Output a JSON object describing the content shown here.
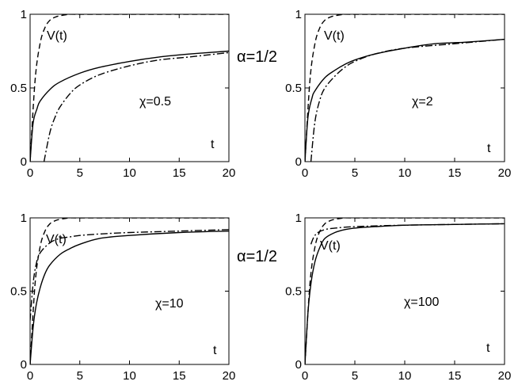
{
  "figure_labels": {
    "top": "α=1/2",
    "bottom": "α=1/2"
  },
  "chart_data": [
    {
      "type": "line",
      "xlim": [
        0,
        20
      ],
      "ylim": [
        0,
        1
      ],
      "xticks": [
        "0",
        "5",
        "10",
        "15",
        "20"
      ],
      "yticks": [
        "0",
        "0.5",
        "1"
      ],
      "xlabel": "t",
      "annotations": {
        "curve_label": "V(t)",
        "param": "χ=0.5"
      },
      "series": [
        {
          "name": "V(t)",
          "style": "dashed",
          "x": [
            0,
            0.5,
            1,
            1.5,
            2,
            2.5,
            3,
            4,
            5,
            20
          ],
          "y": [
            0,
            0.55,
            0.8,
            0.91,
            0.96,
            0.98,
            0.99,
            1.0,
            1.0,
            1.0
          ]
        },
        {
          "style": "solid",
          "x": [
            0,
            0.3,
            0.7,
            1,
            2,
            3,
            5,
            7,
            10,
            13,
            16,
            20
          ],
          "y": [
            0,
            0.26,
            0.36,
            0.41,
            0.49,
            0.54,
            0.6,
            0.64,
            0.68,
            0.71,
            0.73,
            0.75
          ]
        },
        {
          "style": "dashdot",
          "x": [
            1.4,
            2,
            2.5,
            3,
            4,
            5,
            7,
            10,
            13,
            16,
            20
          ],
          "y": [
            0,
            0.2,
            0.3,
            0.37,
            0.46,
            0.52,
            0.59,
            0.65,
            0.69,
            0.71,
            0.74
          ]
        }
      ]
    },
    {
      "type": "line",
      "xlim": [
        0,
        20
      ],
      "ylim": [
        0,
        1
      ],
      "xticks": [
        "0",
        "5",
        "10",
        "15",
        "20"
      ],
      "yticks": [
        "0",
        "0.5",
        "1"
      ],
      "xlabel": "t",
      "annotations": {
        "curve_label": "V(t)",
        "param": "χ=2"
      },
      "series": [
        {
          "name": "V(t)",
          "style": "dashed",
          "x": [
            0,
            0.5,
            1,
            1.5,
            2,
            2.5,
            3,
            4,
            5,
            20
          ],
          "y": [
            0,
            0.55,
            0.8,
            0.91,
            0.96,
            0.98,
            0.99,
            1.0,
            1.0,
            1.0
          ]
        },
        {
          "style": "solid",
          "x": [
            0,
            0.3,
            0.7,
            1,
            2,
            3,
            4,
            5,
            7,
            10,
            13,
            16,
            20
          ],
          "y": [
            0,
            0.3,
            0.43,
            0.48,
            0.57,
            0.62,
            0.66,
            0.69,
            0.73,
            0.77,
            0.8,
            0.81,
            0.83
          ]
        },
        {
          "style": "dashdot",
          "x": [
            0.6,
            1,
            1.5,
            2,
            3,
            4,
            5,
            7,
            10,
            15,
            20
          ],
          "y": [
            0,
            0.27,
            0.42,
            0.5,
            0.58,
            0.64,
            0.68,
            0.73,
            0.77,
            0.8,
            0.83
          ]
        }
      ]
    },
    {
      "type": "line",
      "xlim": [
        0,
        20
      ],
      "ylim": [
        0,
        1
      ],
      "xticks": [
        "0",
        "5",
        "10",
        "15",
        "20"
      ],
      "yticks": [
        "0",
        "0.5",
        "1"
      ],
      "xlabel": "t",
      "annotations": {
        "curve_label": "V(t)",
        "param": "χ=10"
      },
      "series": [
        {
          "name": "V(t)",
          "style": "dashed",
          "x": [
            0,
            0.5,
            1,
            1.5,
            2,
            2.5,
            3,
            4,
            5,
            20
          ],
          "y": [
            0,
            0.55,
            0.8,
            0.91,
            0.96,
            0.98,
            0.99,
            1.0,
            1.0,
            1.0
          ]
        },
        {
          "style": "solid",
          "x": [
            0,
            0.3,
            0.6,
            1,
            1.5,
            2,
            3,
            4,
            5,
            7,
            10,
            15,
            20
          ],
          "y": [
            0,
            0.25,
            0.4,
            0.52,
            0.62,
            0.68,
            0.75,
            0.79,
            0.82,
            0.86,
            0.88,
            0.9,
            0.91
          ]
        },
        {
          "style": "dashdot",
          "x": [
            0,
            0.3,
            0.6,
            1,
            2,
            3,
            4,
            5,
            7,
            10,
            15,
            20
          ],
          "y": [
            0.3,
            0.55,
            0.68,
            0.76,
            0.83,
            0.86,
            0.87,
            0.88,
            0.89,
            0.9,
            0.91,
            0.92
          ]
        }
      ]
    },
    {
      "type": "line",
      "xlim": [
        0,
        20
      ],
      "ylim": [
        0,
        1
      ],
      "xticks": [
        "0",
        "5",
        "10",
        "15",
        "20"
      ],
      "yticks": [
        "0",
        "0.5",
        "1"
      ],
      "xlabel": "t",
      "annotations": {
        "curve_label": "V(t)",
        "param": "χ=100"
      },
      "series": [
        {
          "name": "V(t)",
          "style": "dashed",
          "x": [
            0,
            0.5,
            1,
            1.5,
            2,
            2.5,
            3,
            4,
            5,
            20
          ],
          "y": [
            0,
            0.55,
            0.8,
            0.91,
            0.96,
            0.98,
            0.99,
            1.0,
            1.0,
            1.0
          ]
        },
        {
          "style": "solid",
          "x": [
            0,
            0.3,
            0.6,
            1,
            1.5,
            2,
            3,
            4,
            5,
            7,
            10,
            15,
            20
          ],
          "y": [
            0,
            0.35,
            0.55,
            0.7,
            0.8,
            0.86,
            0.9,
            0.92,
            0.93,
            0.94,
            0.95,
            0.955,
            0.96
          ]
        },
        {
          "style": "dashdot",
          "x": [
            0.6,
            0.9,
            1.3,
            2,
            3,
            5,
            10,
            20
          ],
          "y": [
            0.82,
            0.87,
            0.9,
            0.92,
            0.93,
            0.94,
            0.95,
            0.96
          ]
        }
      ]
    }
  ]
}
